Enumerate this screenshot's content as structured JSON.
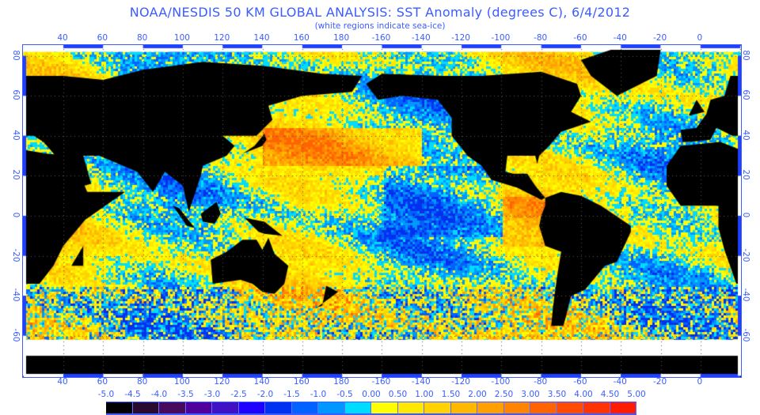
{
  "title": "NOAA/NESDIS 50 KM GLOBAL ANALYSIS: SST Anomaly (degrees C), 6/4/2012",
  "subtitle": "(white regions indicate sea-ice)",
  "lon_labels": [
    "40",
    "60",
    "80",
    "100",
    "120",
    "140",
    "160",
    "180",
    "-160",
    "-140",
    "-120",
    "-100",
    "-80",
    "-60",
    "-40",
    "-20",
    "0"
  ],
  "lat_labels": [
    "80",
    "60",
    "40",
    "20",
    "0",
    "-20",
    "-40",
    "-60"
  ],
  "colorbar": {
    "labels": [
      "-5.0",
      "-4.5",
      "-4.0",
      "-3.5",
      "-3.0",
      "-2.5",
      "-2.0",
      "-1.5",
      "-1.0",
      "-0.5",
      "0.00",
      "0.50",
      "1.00",
      "1.50",
      "2.00",
      "2.50",
      "3.00",
      "3.50",
      "4.00",
      "4.50",
      "5.00"
    ],
    "colors": [
      "#000000",
      "#2a0a2e",
      "#4a0a5c",
      "#52009a",
      "#4012c4",
      "#2000ff",
      "#0030f0",
      "#0062ff",
      "#0098ff",
      "#00dcff",
      "#ffff00",
      "#ffe800",
      "#ffd200",
      "#ffb800",
      "#ffa000",
      "#ff8400",
      "#ff6400",
      "#ff4c00",
      "#ff3400",
      "#ff1c00"
    ]
  },
  "colors": {
    "land": "#000000",
    "ice": "#ffffff",
    "axis": "#3b5cff"
  }
}
